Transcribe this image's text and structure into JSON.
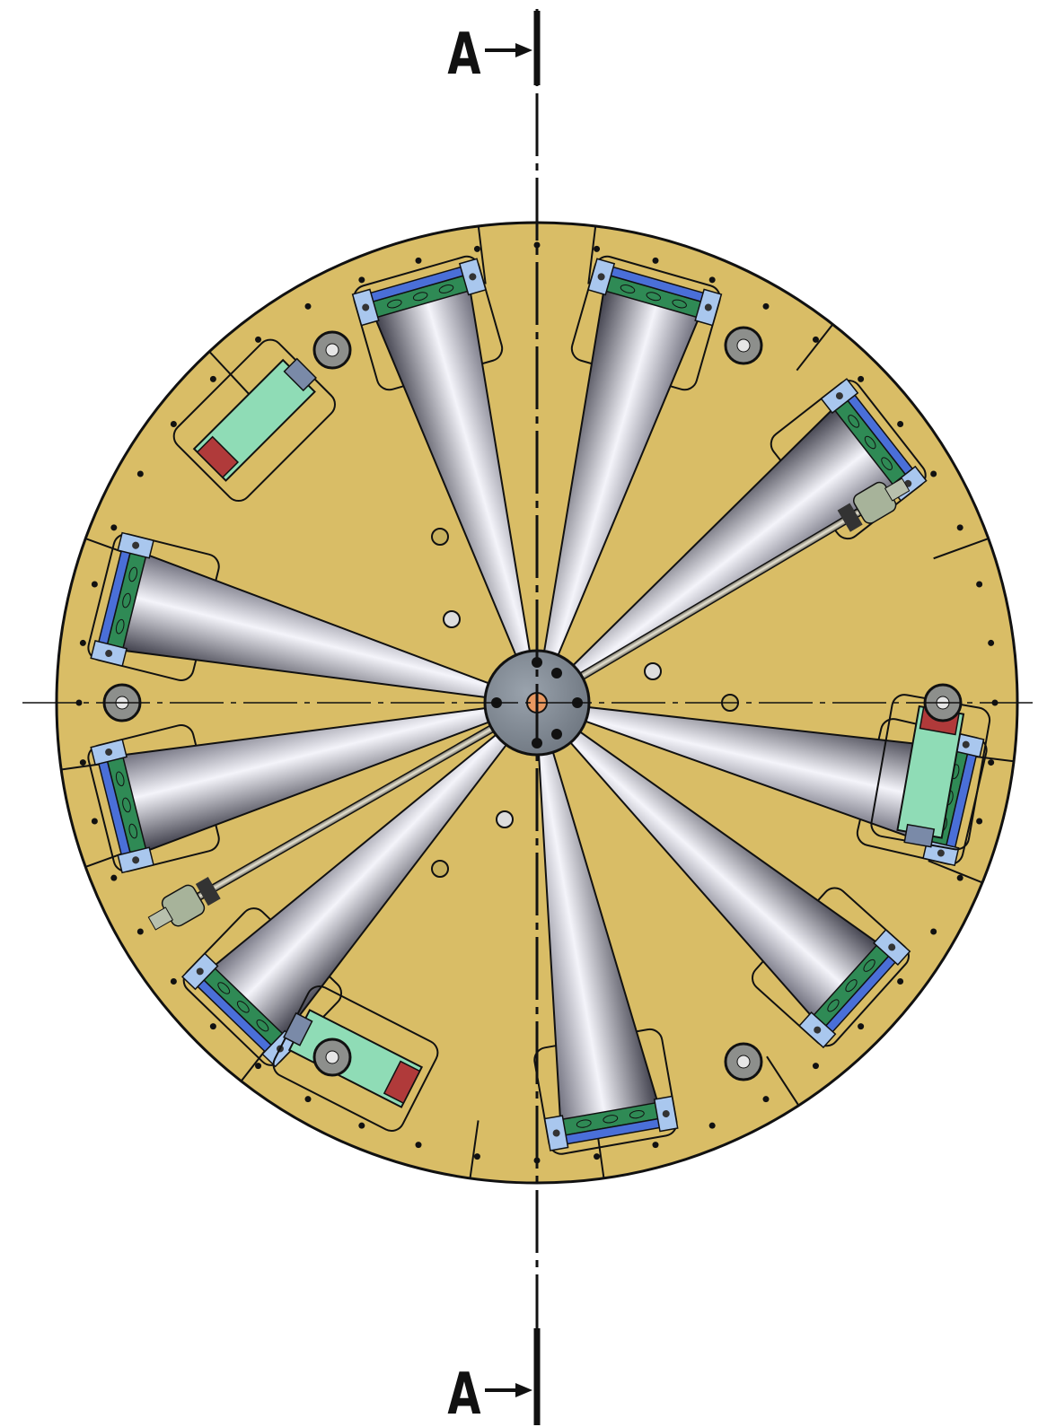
{
  "section_marks": {
    "top": "A",
    "bottom": "A"
  }
}
